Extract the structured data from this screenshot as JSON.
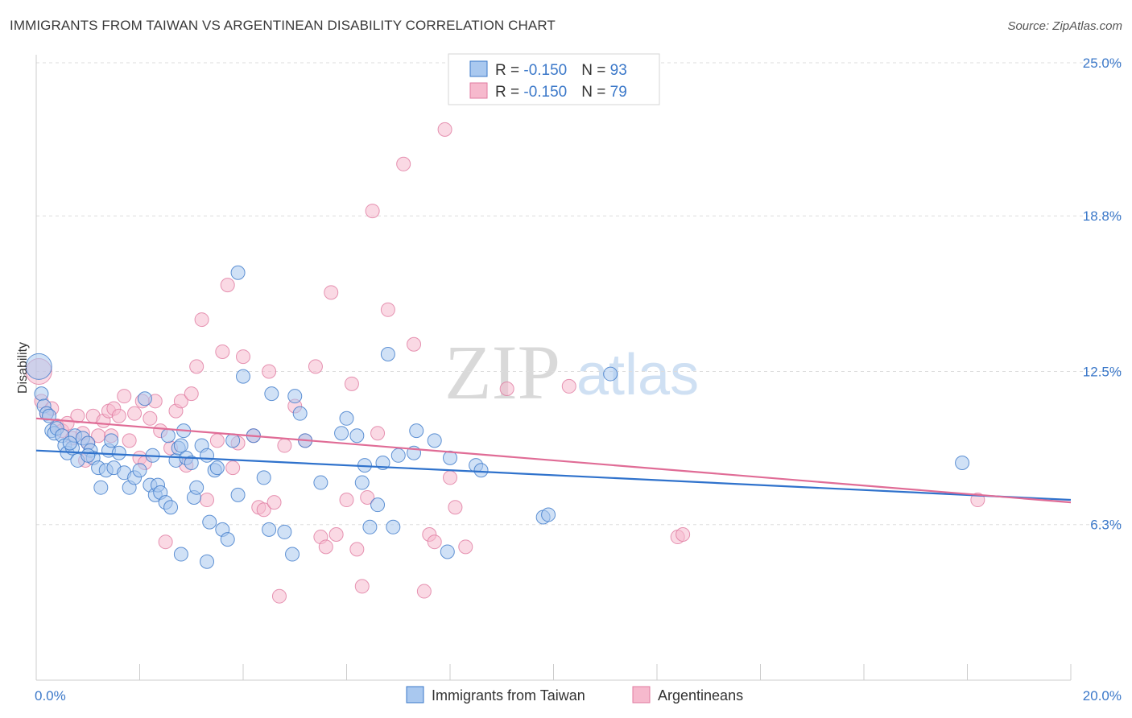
{
  "header": {
    "title": "IMMIGRANTS FROM TAIWAN VS ARGENTINEAN DISABILITY CORRELATION CHART",
    "source": "Source: ZipAtlas.com"
  },
  "watermark": {
    "zip": "ZIP",
    "atlas": "atlas"
  },
  "colors": {
    "series1_fill": "#a9c8ef",
    "series1_stroke": "#3b78c9",
    "series1_line": "#2f72cc",
    "series2_fill": "#f6b9cd",
    "series2_stroke": "#e07aa0",
    "series2_line": "#e06c96",
    "grid": "#dddddd",
    "tick_label": "#3b78c9"
  },
  "legend": {
    "items": [
      {
        "r_label": "R = ",
        "r_value": "-0.150",
        "n_label": "N = ",
        "n_value": "93"
      },
      {
        "r_label": "R = ",
        "r_value": "-0.150",
        "n_label": "N = ",
        "n_value": "79"
      }
    ]
  },
  "chart_data": {
    "type": "scatter",
    "title": "IMMIGRANTS FROM TAIWAN VS ARGENTINEAN DISABILITY CORRELATION CHART",
    "xlabel": "",
    "ylabel": "Disability",
    "xlim": [
      0,
      20
    ],
    "ylim": [
      0,
      25.0
    ],
    "x_tick_labels": [
      "0.0%",
      "20.0%"
    ],
    "y_ticks": [
      6.3,
      12.5,
      18.8,
      25.0
    ],
    "y_tick_labels": [
      "6.3%",
      "12.5%",
      "18.8%",
      "25.0%"
    ],
    "grid": "horizontal dashed",
    "legend_position": "top-center",
    "series": [
      {
        "name": "Immigrants from Taiwan",
        "trend": {
          "x": [
            0,
            20
          ],
          "y": [
            9.3,
            7.3
          ]
        },
        "points": [
          [
            0.05,
            12.7
          ],
          [
            0.1,
            11.6
          ],
          [
            0.15,
            11.1
          ],
          [
            0.2,
            10.8
          ],
          [
            0.25,
            10.7
          ],
          [
            0.3,
            10.1
          ],
          [
            0.35,
            10.0
          ],
          [
            0.4,
            10.2
          ],
          [
            0.5,
            9.9
          ],
          [
            0.55,
            9.5
          ],
          [
            0.6,
            9.2
          ],
          [
            0.7,
            9.4
          ],
          [
            0.75,
            9.9
          ],
          [
            0.8,
            8.9
          ],
          [
            0.9,
            9.8
          ],
          [
            1.0,
            9.6
          ],
          [
            1.05,
            9.3
          ],
          [
            1.1,
            9.0
          ],
          [
            1.2,
            8.6
          ],
          [
            1.25,
            7.8
          ],
          [
            1.35,
            8.5
          ],
          [
            1.4,
            9.3
          ],
          [
            1.45,
            9.7
          ],
          [
            1.5,
            8.6
          ],
          [
            1.6,
            9.2
          ],
          [
            1.7,
            8.4
          ],
          [
            1.8,
            7.8
          ],
          [
            1.9,
            8.2
          ],
          [
            2.0,
            8.5
          ],
          [
            2.1,
            11.4
          ],
          [
            2.2,
            7.9
          ],
          [
            2.25,
            9.1
          ],
          [
            2.3,
            7.5
          ],
          [
            2.35,
            7.9
          ],
          [
            2.4,
            7.6
          ],
          [
            2.5,
            7.2
          ],
          [
            2.6,
            7.0
          ],
          [
            2.7,
            8.9
          ],
          [
            2.75,
            9.4
          ],
          [
            2.8,
            9.5
          ],
          [
            2.85,
            10.1
          ],
          [
            2.9,
            9.0
          ],
          [
            3.0,
            8.8
          ],
          [
            3.05,
            7.4
          ],
          [
            3.1,
            7.8
          ],
          [
            3.2,
            9.5
          ],
          [
            3.3,
            9.1
          ],
          [
            3.35,
            6.4
          ],
          [
            3.45,
            8.5
          ],
          [
            3.5,
            8.6
          ],
          [
            3.6,
            6.1
          ],
          [
            3.7,
            5.7
          ],
          [
            3.8,
            9.7
          ],
          [
            3.9,
            7.5
          ],
          [
            4.0,
            12.3
          ],
          [
            4.2,
            9.9
          ],
          [
            4.4,
            8.2
          ],
          [
            4.5,
            6.1
          ],
          [
            4.55,
            11.6
          ],
          [
            4.8,
            6.0
          ],
          [
            5.0,
            11.5
          ],
          [
            5.1,
            10.8
          ],
          [
            5.2,
            9.7
          ],
          [
            5.5,
            8.0
          ],
          [
            5.9,
            10.0
          ],
          [
            6.0,
            10.6
          ],
          [
            6.2,
            9.9
          ],
          [
            6.3,
            8.0
          ],
          [
            6.35,
            8.7
          ],
          [
            6.45,
            6.2
          ],
          [
            6.6,
            7.1
          ],
          [
            6.7,
            8.8
          ],
          [
            6.8,
            13.2
          ],
          [
            6.9,
            6.2
          ],
          [
            7.0,
            9.1
          ],
          [
            7.3,
            9.2
          ],
          [
            7.35,
            10.1
          ],
          [
            7.7,
            9.7
          ],
          [
            7.95,
            5.2
          ],
          [
            8.0,
            9.0
          ],
          [
            8.5,
            8.7
          ],
          [
            8.6,
            8.5
          ],
          [
            9.8,
            6.6
          ],
          [
            9.9,
            6.7
          ],
          [
            11.1,
            12.4
          ],
          [
            17.9,
            8.8
          ],
          [
            3.9,
            16.5
          ],
          [
            2.8,
            5.1
          ],
          [
            3.3,
            4.8
          ],
          [
            1.0,
            9.1
          ],
          [
            0.65,
            9.6
          ],
          [
            2.55,
            9.9
          ],
          [
            4.95,
            5.1
          ]
        ]
      },
      {
        "name": "Argentineans",
        "trend": {
          "x": [
            0,
            20
          ],
          "y": [
            10.6,
            7.2
          ]
        },
        "points": [
          [
            0.05,
            12.5
          ],
          [
            0.1,
            11.3
          ],
          [
            0.2,
            10.8
          ],
          [
            0.3,
            11.0
          ],
          [
            0.4,
            10.3
          ],
          [
            0.5,
            10.1
          ],
          [
            0.6,
            10.4
          ],
          [
            0.7,
            9.8
          ],
          [
            0.8,
            10.7
          ],
          [
            0.9,
            10.0
          ],
          [
            1.0,
            9.6
          ],
          [
            1.1,
            10.7
          ],
          [
            1.2,
            9.9
          ],
          [
            1.3,
            10.5
          ],
          [
            1.4,
            10.9
          ],
          [
            1.5,
            11.0
          ],
          [
            1.6,
            10.7
          ],
          [
            1.7,
            11.5
          ],
          [
            1.8,
            9.7
          ],
          [
            1.9,
            10.8
          ],
          [
            2.0,
            9.0
          ],
          [
            2.1,
            8.8
          ],
          [
            2.2,
            10.6
          ],
          [
            2.3,
            11.3
          ],
          [
            2.4,
            10.1
          ],
          [
            2.5,
            5.6
          ],
          [
            2.6,
            9.4
          ],
          [
            2.7,
            10.9
          ],
          [
            2.8,
            11.3
          ],
          [
            2.9,
            8.7
          ],
          [
            3.0,
            11.6
          ],
          [
            3.1,
            12.7
          ],
          [
            3.2,
            14.6
          ],
          [
            3.3,
            7.3
          ],
          [
            3.5,
            9.7
          ],
          [
            3.6,
            13.3
          ],
          [
            3.7,
            16.0
          ],
          [
            3.8,
            8.6
          ],
          [
            3.9,
            9.6
          ],
          [
            4.0,
            13.1
          ],
          [
            4.2,
            9.9
          ],
          [
            4.3,
            7.0
          ],
          [
            4.4,
            6.9
          ],
          [
            4.5,
            12.5
          ],
          [
            4.6,
            7.2
          ],
          [
            4.7,
            3.4
          ],
          [
            4.8,
            9.5
          ],
          [
            5.0,
            11.1
          ],
          [
            5.2,
            9.7
          ],
          [
            5.4,
            12.7
          ],
          [
            5.5,
            5.8
          ],
          [
            5.6,
            5.4
          ],
          [
            5.7,
            15.7
          ],
          [
            5.8,
            5.9
          ],
          [
            6.0,
            7.3
          ],
          [
            6.1,
            12.0
          ],
          [
            6.2,
            5.3
          ],
          [
            6.3,
            3.8
          ],
          [
            6.4,
            7.4
          ],
          [
            6.5,
            19.0
          ],
          [
            6.6,
            10.0
          ],
          [
            6.8,
            15.0
          ],
          [
            7.1,
            20.9
          ],
          [
            7.3,
            13.6
          ],
          [
            7.5,
            3.6
          ],
          [
            7.6,
            5.9
          ],
          [
            7.7,
            5.6
          ],
          [
            7.9,
            22.3
          ],
          [
            8.0,
            8.2
          ],
          [
            8.1,
            7.0
          ],
          [
            8.3,
            5.4
          ],
          [
            9.1,
            11.8
          ],
          [
            10.3,
            11.9
          ],
          [
            12.4,
            5.8
          ],
          [
            12.5,
            5.9
          ],
          [
            18.2,
            7.3
          ],
          [
            2.05,
            11.3
          ],
          [
            1.45,
            9.9
          ],
          [
            0.95,
            8.9
          ]
        ]
      }
    ]
  }
}
